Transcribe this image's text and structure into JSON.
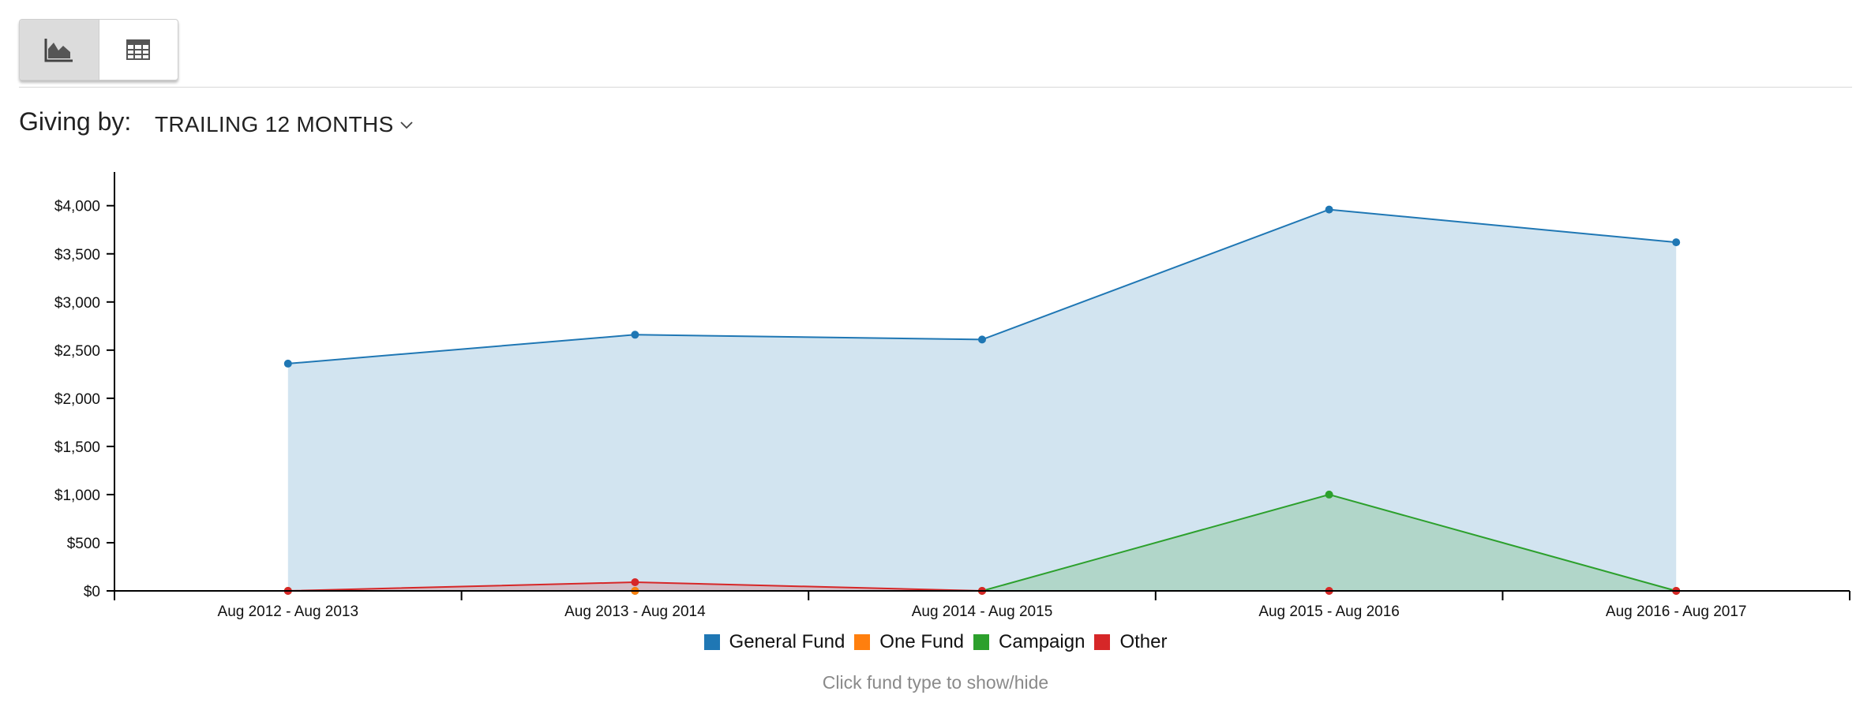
{
  "controls": {
    "chart_view_icon": "area-chart-icon",
    "table_view_icon": "table-icon",
    "giving_by_label": "Giving by:",
    "period_value": "TRAILING 12 MONTHS"
  },
  "chart_data": {
    "type": "area",
    "categories": [
      "Aug 2012 - Aug 2013",
      "Aug 2013 - Aug 2014",
      "Aug 2014 - Aug 2015",
      "Aug 2015 - Aug 2016",
      "Aug 2016 - Aug 2017"
    ],
    "series": [
      {
        "name": "General Fund",
        "color": "#1f77b4",
        "values": [
          2360,
          2660,
          2610,
          3960,
          3620
        ]
      },
      {
        "name": "One Fund",
        "color": "#ff7f0e",
        "values": [
          0,
          0,
          0,
          0,
          0
        ]
      },
      {
        "name": "Campaign",
        "color": "#2ca02c",
        "values": [
          0,
          0,
          0,
          1000,
          0
        ]
      },
      {
        "name": "Other",
        "color": "#d62728",
        "values": [
          0,
          90,
          0,
          0,
          0
        ]
      }
    ],
    "ylim": [
      0,
      4350
    ],
    "yticks": [
      {
        "value": 0,
        "label": "$0"
      },
      {
        "value": 500,
        "label": "$500"
      },
      {
        "value": 1000,
        "label": "$1,000"
      },
      {
        "value": 1500,
        "label": "$1,500"
      },
      {
        "value": 2000,
        "label": "$2,000"
      },
      {
        "value": 2500,
        "label": "$2,500"
      },
      {
        "value": 3000,
        "label": "$3,000"
      },
      {
        "value": 3500,
        "label": "$3,500"
      },
      {
        "value": 4000,
        "label": "$4,000"
      }
    ],
    "legend_position": "bottom-center",
    "grid": false
  },
  "legend_hint": "Click fund type to show/hide"
}
